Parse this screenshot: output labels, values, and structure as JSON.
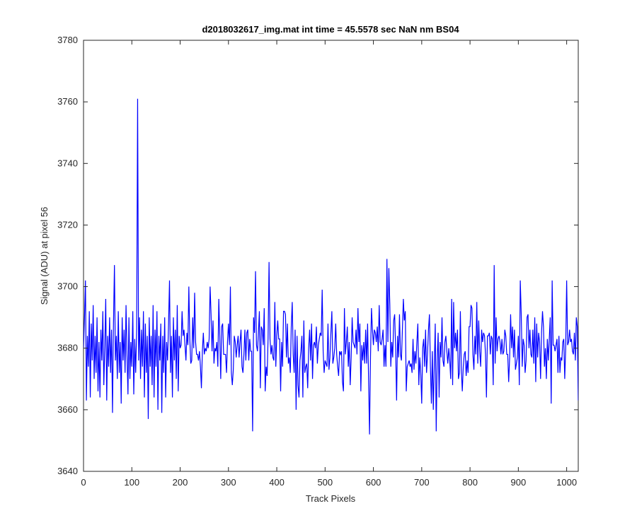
{
  "chart_data": {
    "type": "line",
    "title": "d2018032617_img.mat int time = 45.5578 sec  NaN nm BS04",
    "xlabel": "Track Pixels",
    "ylabel": "Signal (ADU) at pixel 56",
    "xlim": [
      0,
      1024
    ],
    "ylim": [
      3640,
      3780
    ],
    "xticks": [
      0,
      100,
      200,
      300,
      400,
      500,
      600,
      700,
      800,
      900,
      1000
    ],
    "yticks": [
      3640,
      3660,
      3680,
      3700,
      3720,
      3740,
      3760,
      3780
    ],
    "grid": false,
    "legend": "none",
    "colors": {
      "line": "#0000ff",
      "axes": "#262626"
    },
    "series": [
      {
        "baseline": 3680,
        "points": [
          [
            0,
            3680
          ],
          [
            2,
            3690
          ],
          [
            4,
            3702
          ],
          [
            6,
            3663
          ],
          [
            8,
            3684
          ],
          [
            10,
            3674
          ],
          [
            12,
            3692
          ],
          [
            14,
            3664
          ],
          [
            16,
            3688
          ],
          [
            18,
            3676
          ],
          [
            20,
            3694
          ],
          [
            22,
            3670
          ],
          [
            24,
            3684
          ],
          [
            26,
            3672
          ],
          [
            28,
            3690
          ],
          [
            30,
            3666
          ],
          [
            32,
            3682
          ],
          [
            34,
            3664
          ],
          [
            36,
            3686
          ],
          [
            38,
            3676
          ],
          [
            40,
            3692
          ],
          [
            42,
            3668
          ],
          [
            44,
            3680
          ],
          [
            46,
            3696
          ],
          [
            48,
            3663
          ],
          [
            50,
            3684
          ],
          [
            52,
            3674
          ],
          [
            54,
            3690
          ],
          [
            56,
            3672
          ],
          [
            58,
            3686
          ],
          [
            60,
            3659
          ],
          [
            62,
            3688
          ],
          [
            64,
            3707
          ],
          [
            66,
            3676
          ],
          [
            68,
            3684
          ],
          [
            70,
            3670
          ],
          [
            72,
            3692
          ],
          [
            74,
            3672
          ],
          [
            76,
            3682
          ],
          [
            78,
            3662
          ],
          [
            80,
            3690
          ],
          [
            82,
            3676
          ],
          [
            84,
            3686
          ],
          [
            86,
            3672
          ],
          [
            88,
            3694
          ],
          [
            90,
            3678
          ],
          [
            92,
            3665
          ],
          [
            94,
            3690
          ],
          [
            96,
            3670
          ],
          [
            98,
            3682
          ],
          [
            100,
            3674
          ],
          [
            102,
            3692
          ],
          [
            104,
            3665
          ],
          [
            106,
            3683
          ],
          [
            108,
            3672
          ],
          [
            110,
            3686
          ],
          [
            112,
            3761
          ],
          [
            114,
            3676
          ],
          [
            116,
            3690
          ],
          [
            118,
            3670
          ],
          [
            120,
            3686
          ],
          [
            122,
            3674
          ],
          [
            124,
            3692
          ],
          [
            126,
            3664
          ],
          [
            128,
            3688
          ],
          [
            130,
            3672
          ],
          [
            132,
            3684
          ],
          [
            134,
            3657
          ],
          [
            136,
            3690
          ],
          [
            138,
            3674
          ],
          [
            140,
            3684
          ],
          [
            142,
            3668
          ],
          [
            144,
            3694
          ],
          [
            146,
            3664
          ],
          [
            148,
            3686
          ],
          [
            150,
            3674
          ],
          [
            152,
            3692
          ],
          [
            154,
            3660
          ],
          [
            156,
            3684
          ],
          [
            158,
            3676
          ],
          [
            160,
            3688
          ],
          [
            162,
            3659
          ],
          [
            164,
            3684
          ],
          [
            166,
            3672
          ],
          [
            168,
            3690
          ],
          [
            170,
            3664
          ],
          [
            172,
            3682
          ],
          [
            174,
            3676
          ],
          [
            176,
            3688
          ],
          [
            178,
            3702
          ],
          [
            180,
            3672
          ],
          [
            182,
            3684
          ],
          [
            184,
            3664
          ],
          [
            186,
            3690
          ],
          [
            188,
            3676
          ],
          [
            190,
            3686
          ],
          [
            192,
            3670
          ],
          [
            194,
            3694
          ],
          [
            196,
            3666
          ],
          [
            198,
            3684
          ],
          [
            200,
            3680
          ]
        ]
      }
    ],
    "noise": {
      "seed": 12345,
      "from": 200,
      "to": 1024,
      "step": 2,
      "spread": 10
    },
    "spikes": [
      [
        218,
        3700
      ],
      [
        230,
        3698
      ],
      [
        262,
        3700
      ],
      [
        304,
        3700
      ],
      [
        350,
        3653
      ],
      [
        356,
        3705
      ],
      [
        384,
        3708
      ],
      [
        440,
        3660
      ],
      [
        592,
        3652
      ],
      [
        628,
        3709
      ],
      [
        632,
        3706
      ],
      [
        700,
        3662
      ],
      [
        730,
        3653
      ],
      [
        850,
        3707
      ],
      [
        904,
        3702
      ],
      [
        970,
        3702
      ],
      [
        1000,
        3702
      ]
    ]
  }
}
